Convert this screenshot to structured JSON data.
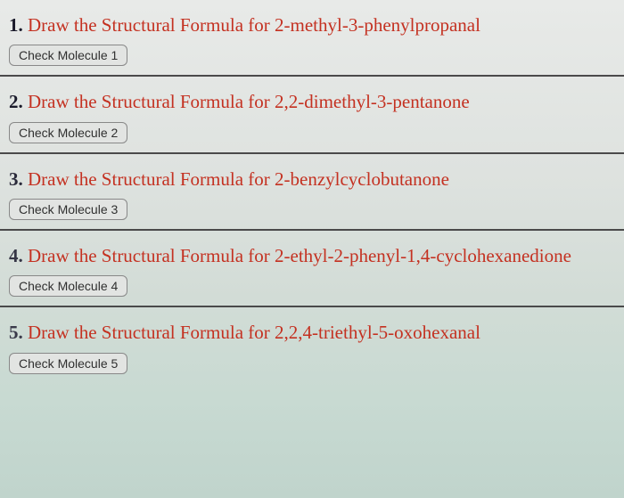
{
  "questions": [
    {
      "num": "1.",
      "prompt": "Draw the Structural Formula for 2-methyl-3-phenylpropanal",
      "button": "Check Molecule 1"
    },
    {
      "num": "2.",
      "prompt": "Draw the Structural Formula for 2,2-dimethyl-3-pentanone",
      "button": "Check Molecule 2"
    },
    {
      "num": "3.",
      "prompt": "Draw the Structural Formula for 2-benzylcyclobutanone",
      "button": "Check Molecule 3"
    },
    {
      "num": "4.",
      "prompt": "Draw the Structural Formula for 2-ethyl-2-phenyl-1,4-cyclohexanedione",
      "button": "Check Molecule 4"
    },
    {
      "num": "5.",
      "prompt": "Draw the Structural Formula for 2,2,4-triethyl-5-oxohexanal",
      "button": "Check Molecule 5"
    }
  ]
}
